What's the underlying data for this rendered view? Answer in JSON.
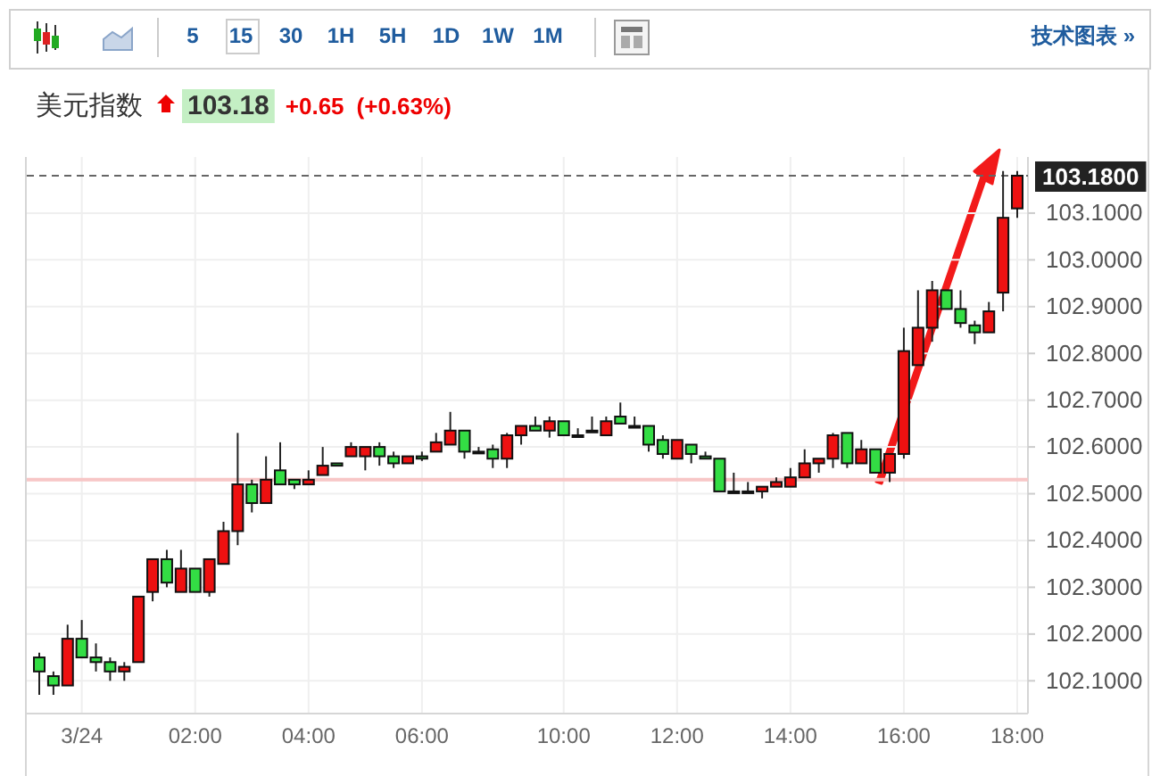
{
  "chart_data": {
    "type": "candlestick",
    "title": "美元指数",
    "annotations": [
      "5",
      "15",
      "30",
      "1H",
      "5H",
      "1D",
      "1W",
      "1M",
      "技术图表 »",
      "103.18",
      "+0.65",
      "(+0.63%)"
    ],
    "categories": [
      null,
      null,
      null,
      "3/24",
      null,
      null,
      null,
      null,
      null,
      null,
      null,
      "02:00",
      null,
      null,
      null,
      null,
      null,
      null,
      null,
      "04:00",
      null,
      null,
      null,
      null,
      null,
      null,
      null,
      "06:00",
      null,
      null,
      null,
      null,
      null,
      null,
      null,
      null,
      null,
      "10:00",
      null,
      null,
      null,
      null,
      null,
      null,
      null,
      "12:00",
      null,
      null,
      null,
      null,
      null,
      null,
      null,
      "14:00",
      null,
      null,
      null,
      null,
      null,
      null,
      null,
      "16:00",
      null,
      null,
      null,
      null,
      null,
      null,
      null,
      "18:00"
    ],
    "ohlc": [
      [
        102.15,
        102.16,
        102.07,
        102.12
      ],
      [
        102.11,
        102.12,
        102.07,
        102.09
      ],
      [
        102.09,
        102.22,
        102.09,
        102.19
      ],
      [
        102.19,
        102.23,
        102.15,
        102.15
      ],
      [
        102.15,
        102.18,
        102.12,
        102.14
      ],
      [
        102.14,
        102.15,
        102.1,
        102.12
      ],
      [
        102.12,
        102.14,
        102.1,
        102.13
      ],
      [
        102.14,
        102.28,
        102.14,
        102.28
      ],
      [
        102.29,
        102.36,
        102.27,
        102.36
      ],
      [
        102.36,
        102.38,
        102.3,
        102.31
      ],
      [
        102.29,
        102.38,
        102.29,
        102.34
      ],
      [
        102.34,
        102.34,
        102.29,
        102.29
      ],
      [
        102.29,
        102.36,
        102.28,
        102.36
      ],
      [
        102.35,
        102.44,
        102.35,
        102.42
      ],
      [
        102.42,
        102.63,
        102.39,
        102.52
      ],
      [
        102.52,
        102.53,
        102.46,
        102.48
      ],
      [
        102.48,
        102.58,
        102.48,
        102.53
      ],
      [
        102.55,
        102.61,
        102.52,
        102.52
      ],
      [
        102.53,
        102.53,
        102.51,
        102.52
      ],
      [
        102.52,
        102.55,
        102.52,
        102.53
      ],
      [
        102.54,
        102.6,
        102.54,
        102.56
      ],
      [
        102.565,
        102.565,
        102.56,
        102.56
      ],
      [
        102.58,
        102.61,
        102.58,
        102.6
      ],
      [
        102.58,
        102.6,
        102.55,
        102.6
      ],
      [
        102.6,
        102.61,
        102.56,
        102.58
      ],
      [
        102.58,
        102.59,
        102.555,
        102.565
      ],
      [
        102.565,
        102.58,
        102.565,
        102.58
      ],
      [
        102.58,
        102.59,
        102.57,
        102.575
      ],
      [
        102.59,
        102.63,
        102.59,
        102.61
      ],
      [
        102.605,
        102.675,
        102.605,
        102.635
      ],
      [
        102.635,
        102.635,
        102.575,
        102.59
      ],
      [
        102.59,
        102.6,
        102.585,
        102.59
      ],
      [
        102.595,
        102.605,
        102.555,
        102.575
      ],
      [
        102.575,
        102.63,
        102.555,
        102.625
      ],
      [
        102.625,
        102.645,
        102.605,
        102.645
      ],
      [
        102.645,
        102.665,
        102.635,
        102.635
      ],
      [
        102.635,
        102.665,
        102.62,
        102.655
      ],
      [
        102.655,
        102.655,
        102.625,
        102.625
      ],
      [
        102.625,
        102.64,
        102.62,
        102.625
      ],
      [
        102.635,
        102.665,
        102.635,
        102.635
      ],
      [
        102.625,
        102.665,
        102.625,
        102.655
      ],
      [
        102.665,
        102.695,
        102.65,
        102.65
      ],
      [
        102.645,
        102.665,
        102.645,
        102.645
      ],
      [
        102.645,
        102.645,
        102.59,
        102.605
      ],
      [
        102.615,
        102.625,
        102.575,
        102.585
      ],
      [
        102.575,
        102.615,
        102.575,
        102.615
      ],
      [
        102.605,
        102.605,
        102.565,
        102.585
      ],
      [
        102.58,
        102.59,
        102.575,
        102.575
      ],
      [
        102.575,
        102.575,
        102.505,
        102.505
      ],
      [
        102.505,
        102.545,
        102.505,
        102.505
      ],
      [
        102.505,
        102.525,
        102.505,
        102.505
      ],
      [
        102.505,
        102.515,
        102.49,
        102.515
      ],
      [
        102.515,
        102.535,
        102.515,
        102.525
      ],
      [
        102.515,
        102.555,
        102.515,
        102.535
      ],
      [
        102.535,
        102.595,
        102.535,
        102.565
      ],
      [
        102.565,
        102.575,
        102.545,
        102.575
      ],
      [
        102.575,
        102.63,
        102.555,
        102.625
      ],
      [
        102.63,
        102.63,
        102.555,
        102.565
      ],
      [
        102.565,
        102.615,
        102.565,
        102.595
      ],
      [
        102.595,
        102.595,
        102.545,
        102.545
      ],
      [
        102.545,
        102.585,
        102.525,
        102.585
      ],
      [
        102.585,
        102.855,
        102.575,
        102.805
      ],
      [
        102.775,
        102.935,
        102.775,
        102.855
      ],
      [
        102.855,
        102.955,
        102.825,
        102.935
      ],
      [
        102.935,
        102.935,
        102.895,
        102.895
      ],
      [
        102.895,
        102.935,
        102.855,
        102.865
      ],
      [
        102.86,
        102.87,
        102.82,
        102.845
      ],
      [
        102.845,
        102.91,
        102.845,
        102.89
      ],
      [
        102.93,
        103.19,
        102.89,
        103.09
      ],
      [
        103.11,
        103.19,
        103.09,
        103.18
      ]
    ],
    "colors": [
      "#33dd44",
      "#33dd44",
      "#ee1111",
      "#33dd44",
      "#33dd44",
      "#33dd44",
      "#ee1111",
      "#ee1111",
      "#ee1111",
      "#33dd44",
      "#ee1111",
      "#33dd44",
      "#ee1111",
      "#ee1111",
      "#ee1111",
      "#33dd44",
      "#ee1111",
      "#33dd44",
      "#33dd44",
      "#ee1111",
      "#ee1111",
      "#33dd44",
      "#ee1111",
      "#ee1111",
      "#33dd44",
      "#33dd44",
      "#ee1111",
      "#33dd44",
      "#ee1111",
      "#ee1111",
      "#33dd44",
      "#33dd44",
      "#33dd44",
      "#ee1111",
      "#ee1111",
      "#33dd44",
      "#ee1111",
      "#33dd44",
      "#33dd44",
      "#33dd44",
      "#ee1111",
      "#33dd44",
      "#33dd44",
      "#33dd44",
      "#33dd44",
      "#ee1111",
      "#33dd44",
      "#33dd44",
      "#33dd44",
      "#33dd44",
      "#33dd44",
      "#ee1111",
      "#ee1111",
      "#ee1111",
      "#ee1111",
      "#ee1111",
      "#ee1111",
      "#33dd44",
      "#ee1111",
      "#33dd44",
      "#ee1111",
      "#ee1111",
      "#ee1111",
      "#ee1111",
      "#33dd44",
      "#33dd44",
      "#33dd44",
      "#ee1111",
      "#ee1111",
      "#ee1111"
    ],
    "ylim": [
      102.03,
      103.22
    ],
    "yticks": [
      {
        "value": 102.1,
        "label": "102.1000"
      },
      {
        "value": 102.2,
        "label": "102.2000"
      },
      {
        "value": 102.3,
        "label": "102.3000"
      },
      {
        "value": 102.4,
        "label": "102.4000"
      },
      {
        "value": 102.5,
        "label": "102.5000"
      },
      {
        "value": 102.6,
        "label": "102.6000"
      },
      {
        "value": 102.7,
        "label": "102.7000"
      },
      {
        "value": 102.8,
        "label": "102.8000"
      },
      {
        "value": 102.9,
        "label": "102.9000"
      },
      {
        "value": 103.0,
        "label": "103.0000"
      },
      {
        "value": 103.1,
        "label": "103.1000"
      }
    ],
    "grid": true,
    "ref_lines": [
      {
        "axis": "y",
        "value": 103.18,
        "label": "103.1800",
        "color": "#666666",
        "line_style": "dashed"
      },
      {
        "axis": "y",
        "value": 102.53,
        "color": "#f7c6c6",
        "line_style": "solid"
      }
    ]
  }
}
